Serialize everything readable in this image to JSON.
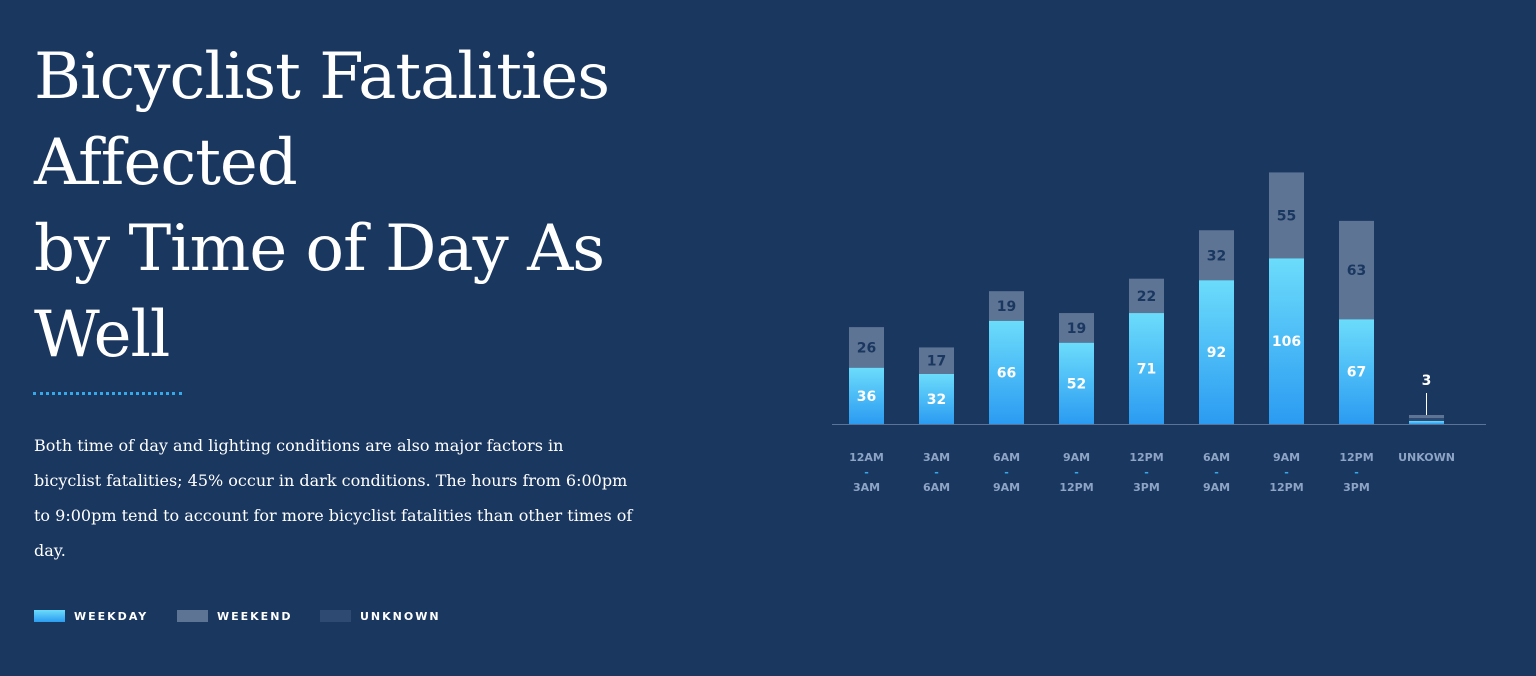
{
  "header": {
    "title_lines": [
      "Bicyclist Fatalities",
      "Affected",
      "by Time of Day As",
      "Well"
    ]
  },
  "body": {
    "paragraph": "Both time of day and lighting conditions are also major factors in bicyclist fatalities; 45% occur in dark conditions. The hours from 6:00pm to 9:00pm tend to account for more bicyclist fatalities than other times of day."
  },
  "legend": {
    "items": [
      {
        "label": "WEEKDAY",
        "color": "#3aa3f0"
      },
      {
        "label": "WEEKEND",
        "color": "#5e7494"
      },
      {
        "label": "UNKNOWN",
        "color": "#2e4a72"
      }
    ]
  },
  "colors": {
    "background": "#1a3760",
    "weekday_top": "#6cdcfb",
    "weekday_bottom": "#2b9bf2",
    "weekend": "#5e7494",
    "unknown": "#2e4a72",
    "axis": "#5a7396",
    "tick_label": "#8da4c4",
    "weekend_label": "#1a3760",
    "accent_dash": "#36a9e8"
  },
  "chart_data": {
    "type": "bar",
    "stacked": true,
    "categories": [
      [
        "12AM",
        "-",
        "3AM"
      ],
      [
        "3AM",
        "-",
        "6AM"
      ],
      [
        "6AM",
        "-",
        "9AM"
      ],
      [
        "9AM",
        "-",
        "12PM"
      ],
      [
        "12PM",
        "-",
        "3PM"
      ],
      [
        "6AM",
        "-",
        "9AM"
      ],
      [
        "9AM",
        "-",
        "12PM"
      ],
      [
        "12PM",
        "-",
        "3PM"
      ],
      [
        "UNKOWN"
      ]
    ],
    "series": [
      {
        "name": "WEEKDAY",
        "values": [
          36,
          32,
          66,
          52,
          71,
          92,
          106,
          67,
          1
        ]
      },
      {
        "name": "WEEKEND",
        "values": [
          26,
          17,
          19,
          19,
          22,
          32,
          55,
          63,
          1
        ]
      },
      {
        "name": "UNKNOWN",
        "values": [
          0,
          0,
          0,
          0,
          0,
          0,
          0,
          0,
          1
        ]
      }
    ],
    "labels": {
      "WEEKDAY": [
        "36",
        "32",
        "66",
        "52",
        "71",
        "92",
        "106",
        "67",
        ""
      ],
      "WEEKEND": [
        "26",
        "17",
        "19",
        "19",
        "22",
        "32",
        "55",
        "63",
        ""
      ],
      "total": [
        "",
        "",
        "",
        "",
        "",
        "",
        "",
        "",
        "3"
      ]
    },
    "ylim": [
      0,
      161
    ],
    "grid": false
  }
}
